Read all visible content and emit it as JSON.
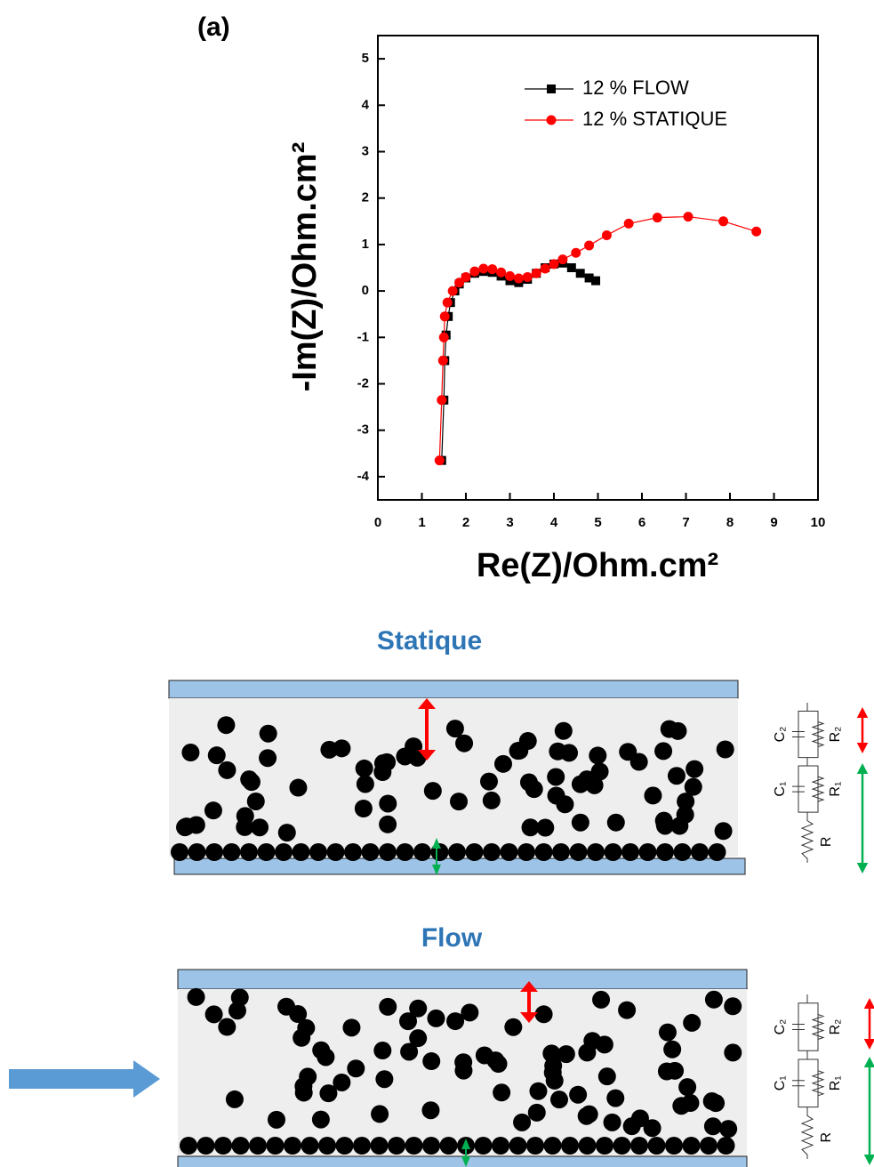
{
  "chart_data": {
    "type": "line",
    "panel_label": "(a)",
    "x_label": "Re(Z)/Ohm.cm²",
    "y_label": "-Im(Z)/Ohm.cm²",
    "xlim": [
      0,
      10
    ],
    "ylim": [
      -4.5,
      5.5
    ],
    "xticks": [
      0,
      1,
      2,
      3,
      4,
      5,
      6,
      7,
      8,
      9,
      10
    ],
    "yticks": [
      -4,
      -3,
      -2,
      -1,
      0,
      1,
      2,
      3,
      4,
      5
    ],
    "legend": "upper right",
    "series": [
      {
        "name": "12 % FLOW",
        "color": "#000000",
        "marker": "square",
        "x": [
          1.45,
          1.5,
          1.52,
          1.55,
          1.6,
          1.65,
          1.75,
          1.85,
          2.0,
          2.2,
          2.4,
          2.6,
          2.8,
          3.0,
          3.2,
          3.4,
          3.6,
          3.8,
          4.0,
          4.2,
          4.4,
          4.6,
          4.8,
          4.95
        ],
        "values": [
          -3.65,
          -2.35,
          -1.5,
          -0.95,
          -0.55,
          -0.25,
          0,
          0.15,
          0.28,
          0.38,
          0.42,
          0.4,
          0.32,
          0.22,
          0.18,
          0.25,
          0.38,
          0.5,
          0.58,
          0.6,
          0.5,
          0.38,
          0.28,
          0.22
        ]
      },
      {
        "name": "12 % STATIQUE",
        "color": "#ff0000",
        "marker": "circle",
        "x": [
          1.4,
          1.45,
          1.48,
          1.5,
          1.52,
          1.58,
          1.7,
          1.85,
          2.0,
          2.2,
          2.4,
          2.6,
          2.8,
          3.0,
          3.2,
          3.4,
          3.6,
          3.8,
          4.0,
          4.2,
          4.5,
          4.8,
          5.2,
          5.7,
          6.35,
          7.05,
          7.85,
          8.6
        ],
        "values": [
          -3.65,
          -2.35,
          -1.5,
          -1.0,
          -0.55,
          -0.25,
          0,
          0.18,
          0.3,
          0.42,
          0.48,
          0.47,
          0.4,
          0.32,
          0.27,
          0.3,
          0.38,
          0.48,
          0.58,
          0.68,
          0.82,
          0.98,
          1.2,
          1.45,
          1.58,
          1.6,
          1.5,
          1.28
        ]
      }
    ]
  },
  "diagrams": [
    {
      "title": "Statique",
      "circuit": {
        "c2": "C₂",
        "r2": "R₂",
        "c1": "C₁",
        "r1": "R₁",
        "r": "R"
      }
    },
    {
      "title": "Flow",
      "circuit": {
        "c2": "C₂",
        "r2": "R₂",
        "c1": "C₁",
        "r1": "R₁",
        "r": "R"
      }
    }
  ]
}
